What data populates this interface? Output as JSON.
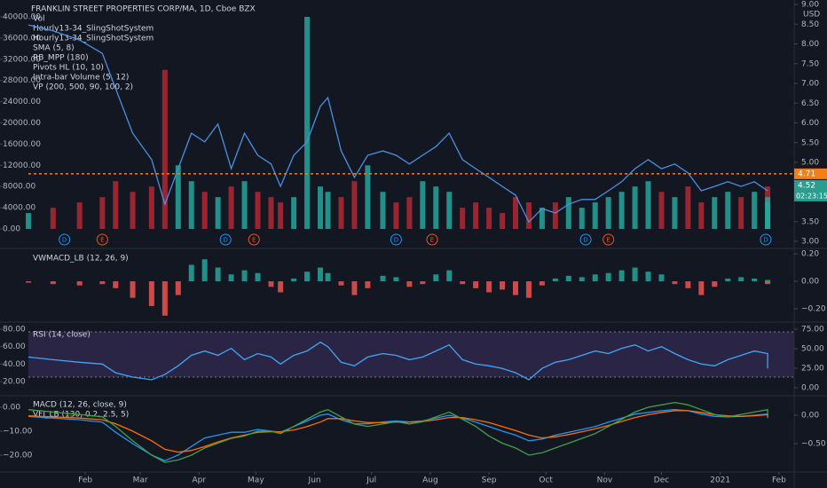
{
  "chart_data": [
    {
      "type": "line",
      "title": "FRANKLIN STREET PROPERTIES CORP/MA, 1D, Cboe BZX",
      "currency": "USD",
      "indicators": [
        "Hourly13-34_SlingShotSystem",
        "Hourly13-34_SlingShotSystem",
        "SMA (5, 8)",
        "RB_MPP (180)",
        "Pivots HL (10, 10)",
        "Intra-bar Volume (5, 12)",
        "VP (200, 500, 90, 100, 2)"
      ],
      "x": [
        1,
        14,
        28,
        40,
        47,
        56,
        66,
        73,
        80,
        87,
        94,
        101,
        108,
        115,
        122,
        129,
        134,
        141,
        148,
        155,
        159,
        166,
        173,
        180,
        188,
        195,
        202,
        209,
        216,
        223,
        230,
        237,
        244,
        251,
        258,
        265,
        272,
        279,
        286,
        293,
        300,
        307,
        314,
        321,
        328,
        335,
        342,
        349,
        356,
        363,
        370,
        377,
        384,
        391,
        391,
        391
      ],
      "price": {
        "color": "#4a90e2",
        "axis": "y2",
        "values": [
          8.48,
          8.33,
          8.1,
          7.76,
          6.87,
          5.74,
          5.07,
          3.94,
          4.84,
          5.74,
          5.52,
          5.97,
          4.84,
          5.74,
          5.18,
          4.96,
          4.39,
          5.18,
          5.52,
          6.42,
          6.64,
          5.29,
          4.62,
          5.18,
          5.29,
          5.18,
          4.96,
          5.18,
          5.4,
          5.74,
          5.07,
          4.84,
          4.62,
          4.39,
          4.17,
          3.49,
          3.83,
          3.72,
          3.94,
          4.06,
          4.06,
          4.28,
          4.51,
          4.84,
          5.07,
          4.84,
          4.96,
          4.73,
          4.28,
          4.39,
          4.51,
          4.39,
          4.51,
          4.28,
          4.28,
          4.28
        ]
      },
      "series": [
        {
          "name": "Vol",
          "type": "bar",
          "axis": "y",
          "up_color": "#26a69a",
          "down_color": "#b22833",
          "values": [
            3000,
            4000,
            5000,
            6000,
            9000,
            7000,
            8000,
            30000,
            12000,
            9000,
            7000,
            6000,
            8000,
            9000,
            7000,
            6000,
            5000,
            6000,
            40000,
            8000,
            7000,
            6000,
            9000,
            12000,
            7000,
            5000,
            6000,
            9000,
            8000,
            7000,
            4000,
            5000,
            4000,
            3000,
            6000,
            5000,
            4000,
            5000,
            6000,
            4000,
            5000,
            6000,
            7000,
            8000,
            9000,
            7000,
            6000,
            8000,
            5000,
            6000,
            7000,
            6000,
            7000,
            8000,
            6000,
            5000
          ]
        }
      ],
      "ylim": [
        -2340,
        42340
      ],
      "yticks": [
        {
          "value": 0,
          "label": "0.00"
        },
        {
          "value": 4000,
          "label": "4000.00"
        },
        {
          "value": 8000,
          "label": "8000.00"
        },
        {
          "value": 12000,
          "label": "12000.00"
        },
        {
          "value": 16000,
          "label": "16000.00"
        },
        {
          "value": 20000,
          "label": "20000.00"
        },
        {
          "value": 24000,
          "label": "24000.00"
        },
        {
          "value": 28000,
          "label": "28000.00"
        },
        {
          "value": 32000,
          "label": "32000.00"
        },
        {
          "value": 36000,
          "label": "36000.00"
        },
        {
          "value": 40000,
          "label": "40000.00"
        }
      ],
      "y2lim": [
        3.0,
        9.0
      ],
      "y2ticks": [
        {
          "value": 3,
          "label": "3.00"
        },
        {
          "value": 3.5,
          "label": "3.50"
        },
        {
          "value": 5,
          "label": "5.00"
        },
        {
          "value": 5.5,
          "label": "5.50"
        },
        {
          "value": 6,
          "label": "6.00"
        },
        {
          "value": 6.5,
          "label": "6.50"
        },
        {
          "value": 7,
          "label": "7.00"
        },
        {
          "value": 7.5,
          "label": "7.50"
        },
        {
          "value": 8,
          "label": "8.00"
        },
        {
          "value": 8.5,
          "label": "8.50"
        },
        {
          "value": 9,
          "label": "9.00"
        }
      ],
      "price_labels": [
        {
          "value": 4.71,
          "label": "4.71",
          "color": "#f57f17",
          "dotted": true
        },
        {
          "value": 4.52,
          "label": "4.52",
          "sub": "02:23:15",
          "color": "#2a9d8f"
        }
      ],
      "events": [
        {
          "x": 20,
          "label": "D",
          "color": "#2196f3"
        },
        {
          "x": 40,
          "label": "E",
          "color": "#f4511e"
        },
        {
          "x": 105,
          "label": "D",
          "color": "#2196f3"
        },
        {
          "x": 120,
          "label": "E",
          "color": "#f4511e"
        },
        {
          "x": 195,
          "label": "D",
          "color": "#2196f3"
        },
        {
          "x": 214,
          "label": "E",
          "color": "#f4511e"
        },
        {
          "x": 295,
          "label": "D",
          "color": "#2196f3"
        },
        {
          "x": 307,
          "label": "E",
          "color": "#f4511e"
        },
        {
          "x": 390,
          "label": "D",
          "color": "#2196f3"
        }
      ]
    },
    {
      "type": "bar",
      "x": [
        1,
        14,
        28,
        40,
        47,
        56,
        66,
        73,
        80,
        87,
        94,
        101,
        108,
        115,
        122,
        129,
        134,
        141,
        148,
        155,
        159,
        166,
        173,
        180,
        188,
        195,
        202,
        209,
        216,
        223,
        230,
        237,
        244,
        251,
        258,
        265,
        272,
        279,
        286,
        293,
        300,
        307,
        314,
        321,
        328,
        335,
        342,
        349,
        356,
        363,
        370,
        377,
        384,
        391,
        391,
        391
      ],
      "series": [
        {
          "name": "VWMACD_LB (12, 26, 9)",
          "type": "bar",
          "axis": "y2",
          "up_color": "#26a69a",
          "down_color": "#ef5350",
          "values": [
            -0.01,
            -0.02,
            -0.03,
            -0.02,
            -0.05,
            -0.12,
            -0.18,
            -0.25,
            -0.1,
            0.12,
            0.16,
            0.1,
            0.05,
            0.08,
            0.06,
            -0.04,
            -0.08,
            0.02,
            0.07,
            0.1,
            0.06,
            -0.03,
            -0.1,
            -0.05,
            0.04,
            0.03,
            -0.04,
            -0.02,
            0.05,
            0.08,
            -0.02,
            -0.05,
            -0.08,
            -0.06,
            -0.1,
            -0.12,
            -0.03,
            0.02,
            0.04,
            0.03,
            0.05,
            0.06,
            0.08,
            0.1,
            0.07,
            0.05,
            -0.02,
            -0.05,
            -0.1,
            -0.04,
            0.02,
            0.03,
            0.02,
            0.01,
            -0.02,
            -0.01
          ]
        }
      ],
      "y2lim": [
        -0.29,
        0.226
      ],
      "y2ticks": [
        {
          "value": -0.2,
          "label": "−0.20"
        },
        {
          "value": 0,
          "label": "0.00"
        },
        {
          "value": 0.2,
          "label": "0.20"
        }
      ]
    },
    {
      "type": "line",
      "x": [
        1,
        14,
        28,
        40,
        47,
        56,
        66,
        73,
        80,
        87,
        94,
        101,
        108,
        115,
        122,
        129,
        134,
        141,
        148,
        155,
        159,
        166,
        173,
        180,
        188,
        195,
        202,
        209,
        216,
        223,
        230,
        237,
        244,
        251,
        258,
        265,
        272,
        279,
        286,
        293,
        300,
        307,
        314,
        321,
        328,
        335,
        342,
        349,
        356,
        363,
        370,
        377,
        384,
        391,
        391,
        391
      ],
      "series": [
        {
          "name": "RSI (14, close)",
          "type": "line",
          "axis": "y",
          "color": "#42a5f5",
          "values": [
            48,
            45,
            42,
            40,
            30,
            25,
            22,
            28,
            38,
            50,
            55,
            50,
            58,
            45,
            52,
            48,
            40,
            50,
            55,
            65,
            60,
            42,
            38,
            48,
            52,
            50,
            45,
            48,
            55,
            62,
            45,
            40,
            38,
            35,
            30,
            22,
            35,
            42,
            45,
            50,
            55,
            52,
            58,
            62,
            55,
            60,
            52,
            45,
            40,
            38,
            45,
            50,
            55,
            52,
            48,
            35
          ]
        }
      ],
      "ylim": [
        4.7,
        86.1
      ],
      "yticks": [
        {
          "value": 20,
          "label": "20.00"
        },
        {
          "value": 40,
          "label": "40.00"
        },
        {
          "value": 60,
          "label": "60.00"
        },
        {
          "value": 80,
          "label": "80.00"
        }
      ],
      "y2lim": [
        -9.1,
        81.8
      ],
      "y2ticks": [
        {
          "value": 0,
          "label": "0.00"
        },
        {
          "value": 25,
          "label": "25.00"
        },
        {
          "value": 50,
          "label": "50.00"
        },
        {
          "value": 75,
          "label": "75.00"
        }
      ]
    },
    {
      "type": "line",
      "x": [
        1,
        14,
        28,
        40,
        47,
        56,
        66,
        73,
        80,
        87,
        94,
        101,
        108,
        115,
        122,
        129,
        134,
        141,
        148,
        155,
        159,
        166,
        173,
        180,
        188,
        195,
        202,
        209,
        216,
        223,
        230,
        237,
        244,
        251,
        258,
        265,
        272,
        279,
        286,
        293,
        300,
        307,
        314,
        321,
        328,
        335,
        342,
        349,
        356,
        363,
        370,
        377,
        384,
        391,
        391,
        391
      ],
      "series": [
        {
          "name": "MACD (12, 26, close, 9)",
          "type": "line",
          "axis": "y2",
          "color": "#2196f3",
          "values": [
            -0.02,
            -0.05,
            -0.08,
            -0.12,
            -0.3,
            -0.5,
            -0.7,
            -0.8,
            -0.7,
            -0.55,
            -0.4,
            -0.35,
            -0.3,
            -0.3,
            -0.25,
            -0.28,
            -0.3,
            -0.2,
            -0.1,
            0.0,
            0.02,
            -0.08,
            -0.15,
            -0.15,
            -0.12,
            -0.1,
            -0.12,
            -0.1,
            -0.05,
            0.0,
            -0.05,
            -0.12,
            -0.2,
            -0.28,
            -0.35,
            -0.45,
            -0.42,
            -0.35,
            -0.3,
            -0.25,
            -0.2,
            -0.12,
            -0.05,
            0.02,
            0.05,
            0.08,
            0.1,
            0.08,
            0.02,
            -0.02,
            -0.03,
            -0.02,
            0.0,
            0.02,
            0.0,
            -0.05
          ]
        },
        {
          "type": "line",
          "axis": "y2",
          "color": "#ff6d00",
          "values": [
            -0.01,
            -0.03,
            -0.05,
            -0.08,
            -0.15,
            -0.28,
            -0.45,
            -0.6,
            -0.65,
            -0.62,
            -0.55,
            -0.47,
            -0.4,
            -0.35,
            -0.3,
            -0.29,
            -0.29,
            -0.26,
            -0.2,
            -0.12,
            -0.06,
            -0.06,
            -0.1,
            -0.13,
            -0.13,
            -0.12,
            -0.12,
            -0.11,
            -0.08,
            -0.04,
            -0.04,
            -0.08,
            -0.13,
            -0.2,
            -0.27,
            -0.35,
            -0.4,
            -0.38,
            -0.34,
            -0.29,
            -0.24,
            -0.18,
            -0.11,
            -0.04,
            0.01,
            0.05,
            0.08,
            0.08,
            0.05,
            0.01,
            -0.01,
            -0.02,
            -0.01,
            0.01,
            0.01,
            -0.02
          ]
        },
        {
          "name": "VFI_LB (130, 0.2, 2.5, 5)",
          "type": "line",
          "axis": "y",
          "color": "#43a047",
          "values": [
            -1,
            -2,
            -3,
            -4,
            -8,
            -14,
            -20,
            -23,
            -22,
            -20,
            -17,
            -15,
            -13,
            -12,
            -10,
            -10,
            -11,
            -8,
            -5,
            -2,
            -1,
            -4,
            -7,
            -8,
            -7,
            -6,
            -7,
            -6,
            -4,
            -2,
            -5,
            -8,
            -12,
            -15,
            -17,
            -20,
            -19,
            -17,
            -15,
            -13,
            -11,
            -8,
            -5,
            -2,
            0,
            1,
            2,
            1,
            -1,
            -3,
            -4,
            -3,
            -2,
            -1,
            -1,
            -3
          ]
        }
      ],
      "ylim": [
        -26.3,
        4.07
      ],
      "yticks": [
        {
          "value": -20,
          "label": "−20.00"
        },
        {
          "value": -10,
          "label": "−10.00"
        },
        {
          "value": 0,
          "label": "0.00"
        }
      ],
      "y2lim": [
        -0.969,
        0.3125
      ],
      "y2ticks": [
        {
          "value": -0.5,
          "label": "−0.50"
        },
        {
          "value": 0,
          "label": "0.00"
        }
      ],
      "xlim": [
        -14,
        405
      ],
      "xticks": [
        {
          "value": 31,
          "label": "Feb"
        },
        {
          "value": 60,
          "label": "Mar"
        },
        {
          "value": 91,
          "label": "Apr"
        },
        {
          "value": 121,
          "label": "May"
        },
        {
          "value": 152,
          "label": "Jun"
        },
        {
          "value": 182,
          "label": "Jul"
        },
        {
          "value": 213,
          "label": "Aug"
        },
        {
          "value": 244,
          "label": "Sep"
        },
        {
          "value": 274,
          "label": "Oct"
        },
        {
          "value": 305,
          "label": "Nov"
        },
        {
          "value": 335,
          "label": "Dec"
        },
        {
          "value": 366,
          "label": "2021"
        },
        {
          "value": 397,
          "label": "Feb"
        }
      ]
    }
  ]
}
